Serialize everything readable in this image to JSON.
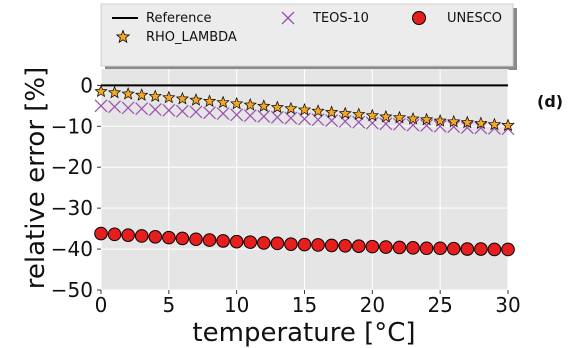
{
  "chart_data": {
    "type": "scatter",
    "panel_label": "(d)",
    "xlabel": "temperature [°C]",
    "ylabel": "relative error [%]",
    "xlim": [
      0,
      30
    ],
    "ylim": [
      -50,
      4
    ],
    "x_ticks": [
      0,
      5,
      10,
      15,
      20,
      25,
      30
    ],
    "y_ticks": [
      0,
      -10,
      -20,
      -30,
      -40,
      -50
    ],
    "grid": true,
    "legend_position": "top, above plot",
    "series": [
      {
        "name": "Reference",
        "style": "line",
        "color": "#000000",
        "x": [
          0,
          30
        ],
        "y": [
          0,
          0
        ]
      },
      {
        "name": "TEOS-10",
        "style": "x-marker",
        "color": "#9b4fb0",
        "x": [
          0,
          1,
          2,
          3,
          4,
          5,
          6,
          7,
          8,
          9,
          10,
          11,
          12,
          13,
          14,
          15,
          16,
          17,
          18,
          19,
          20,
          21,
          22,
          23,
          24,
          25,
          26,
          27,
          28,
          29,
          30
        ],
        "y": [
          -5.0,
          -5.2,
          -5.5,
          -5.7,
          -5.9,
          -6.1,
          -6.3,
          -6.5,
          -6.7,
          -6.9,
          -7.2,
          -7.4,
          -7.6,
          -7.8,
          -8.0,
          -8.2,
          -8.4,
          -8.6,
          -8.8,
          -9.0,
          -9.2,
          -9.4,
          -9.5,
          -9.7,
          -9.8,
          -10.0,
          -10.1,
          -10.3,
          -10.4,
          -10.5,
          -10.6
        ]
      },
      {
        "name": "RHO_LAMBDA",
        "style": "star-marker",
        "color": "#f5a623",
        "x": [
          0,
          1,
          2,
          3,
          4,
          5,
          6,
          7,
          8,
          9,
          10,
          11,
          12,
          13,
          14,
          15,
          16,
          17,
          18,
          19,
          20,
          21,
          22,
          23,
          24,
          25,
          26,
          27,
          28,
          29,
          30
        ],
        "y": [
          -1.5,
          -1.8,
          -2.1,
          -2.4,
          -2.7,
          -3.0,
          -3.3,
          -3.6,
          -3.9,
          -4.2,
          -4.5,
          -4.8,
          -5.1,
          -5.4,
          -5.7,
          -6.0,
          -6.3,
          -6.6,
          -6.9,
          -7.1,
          -7.4,
          -7.7,
          -7.9,
          -8.2,
          -8.4,
          -8.7,
          -8.9,
          -9.1,
          -9.3,
          -9.6,
          -9.8
        ]
      },
      {
        "name": "UNESCO",
        "style": "circle-marker",
        "color": "#e61e1e",
        "x": [
          0,
          1,
          2,
          3,
          4,
          5,
          6,
          7,
          8,
          9,
          10,
          11,
          12,
          13,
          14,
          15,
          16,
          17,
          18,
          19,
          20,
          21,
          22,
          23,
          24,
          25,
          26,
          27,
          28,
          29,
          30
        ],
        "y": [
          -36.2,
          -36.4,
          -36.6,
          -36.8,
          -37.0,
          -37.2,
          -37.4,
          -37.6,
          -37.8,
          -38.0,
          -38.2,
          -38.3,
          -38.5,
          -38.6,
          -38.8,
          -38.9,
          -39.0,
          -39.1,
          -39.2,
          -39.3,
          -39.4,
          -39.5,
          -39.6,
          -39.7,
          -39.8,
          -39.8,
          -39.9,
          -40.0,
          -40.0,
          -40.1,
          -40.1
        ]
      }
    ]
  }
}
